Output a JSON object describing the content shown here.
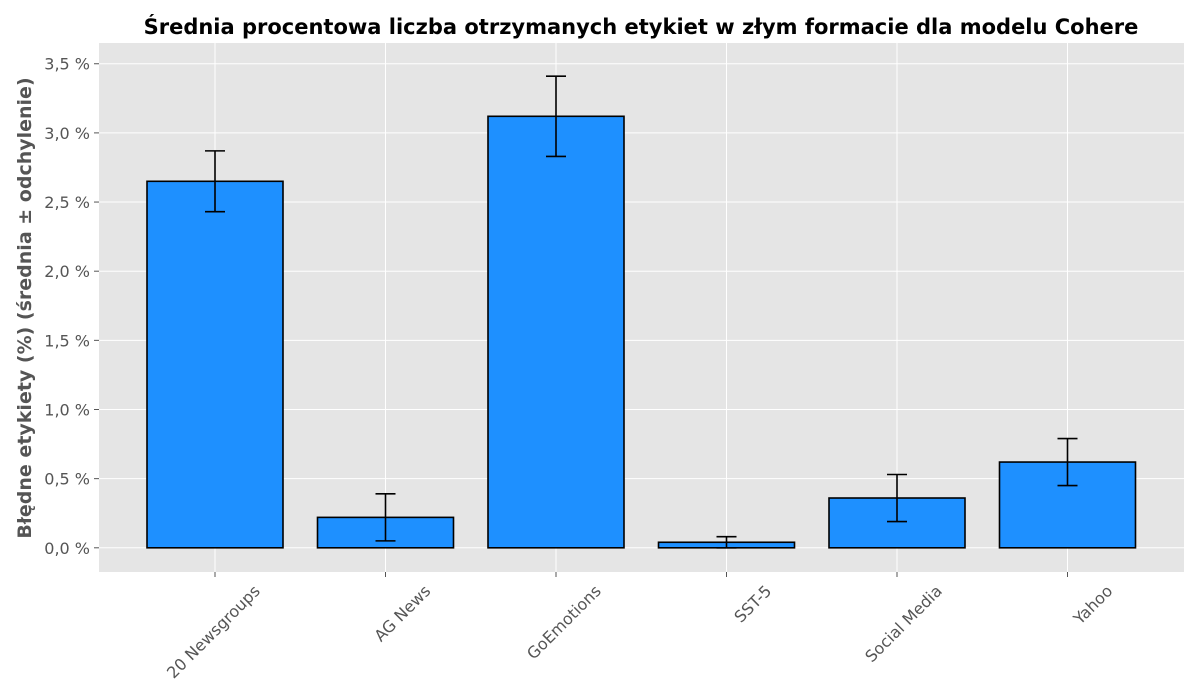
{
  "chart_data": {
    "type": "bar",
    "title": "Średnia procentowa liczba otrzymanych etykiet w złym formacie dla modelu Cohere",
    "xlabel": "",
    "ylabel": "Błędne etykiety (%) (średnia ± odchylenie)",
    "categories": [
      "20 Newsgroups",
      "AG News",
      "GoEmotions",
      "SST-5",
      "Social Media",
      "Yahoo"
    ],
    "values": [
      2.65,
      0.22,
      3.12,
      0.04,
      0.36,
      0.62
    ],
    "errors": [
      0.22,
      0.17,
      0.29,
      0.04,
      0.17,
      0.17
    ],
    "ylim": [
      -0.175,
      3.65
    ],
    "yticks": [
      0.0,
      0.5,
      1.0,
      1.5,
      2.0,
      2.5,
      3.0,
      3.5
    ],
    "ytick_labels": [
      "0,0 %",
      "0,5 %",
      "1,0 %",
      "1,5 %",
      "2,0 %",
      "2,5 %",
      "3,0 %",
      "3,5 %"
    ],
    "grid": true,
    "colors": {
      "bar": "#1e90ff",
      "plot_background": "#e5e5e5",
      "grid": "#ffffff",
      "error_bar": "#000000"
    }
  }
}
